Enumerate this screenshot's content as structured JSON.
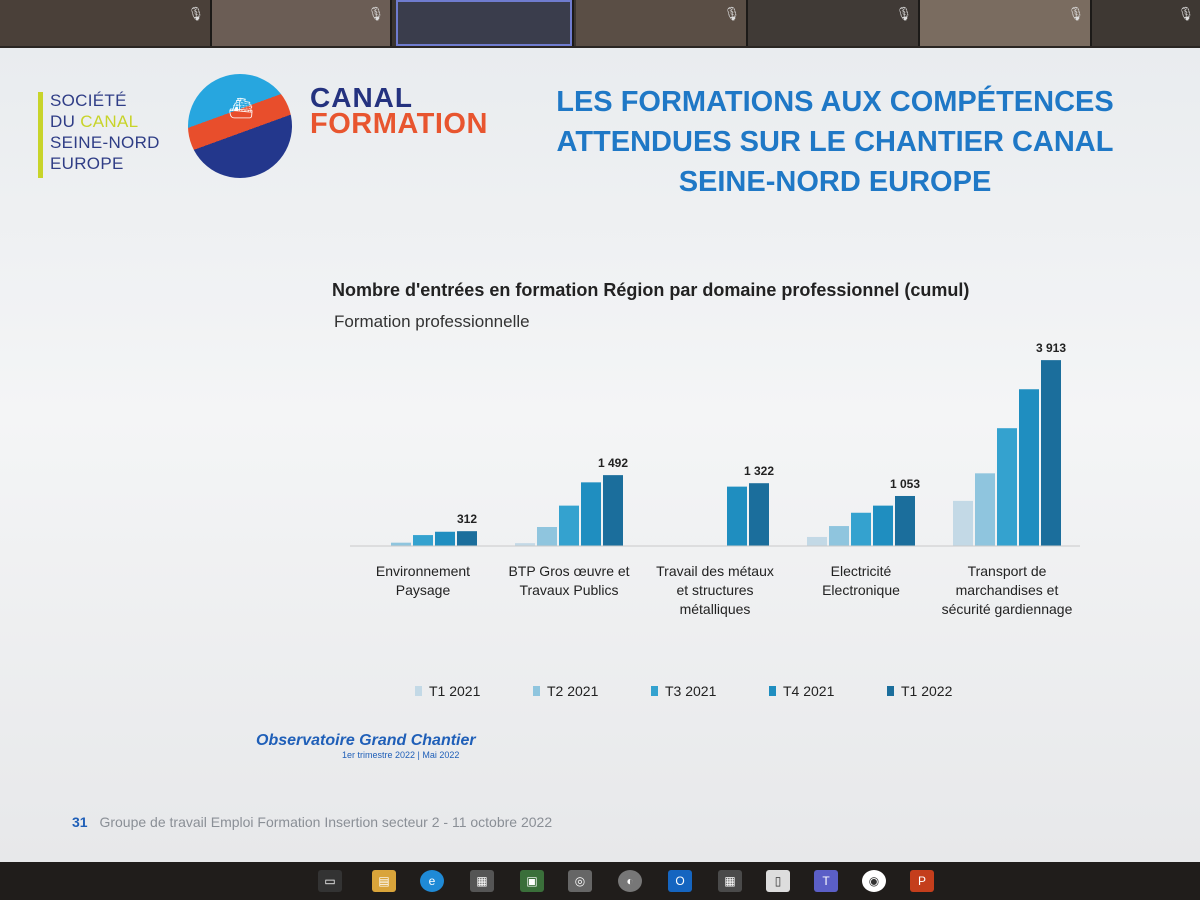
{
  "slide": {
    "logo": {
      "line1": "SOCIÉTÉ",
      "line2a": "DU ",
      "line2b": "CANAL",
      "line3": "SEINE-NORD",
      "line4": "EUROPE"
    },
    "brand": {
      "line1": "CANAL",
      "line2": "FORMATION"
    },
    "title_lines": [
      "LES FORMATIONS AUX COMPÉTENCES",
      "ATTENDUES SUR LE CHANTIER CANAL",
      "SEINE-NORD EUROPE"
    ],
    "observatory": {
      "title": "Observatoire Grand Chantier",
      "subtitle": "1er trimestre 2022 | Mai 2022"
    },
    "footer": {
      "page": "31",
      "text": "Groupe de travail Emploi Formation Insertion secteur 2 - 11 octobre 2022"
    }
  },
  "chart_data": {
    "type": "bar",
    "title": "Nombre d'entrées en formation Région par domaine professionnel (cumul)",
    "subtitle": "Formation professionnelle",
    "categories": [
      [
        "Environnement",
        "Paysage"
      ],
      [
        "BTP Gros œuvre et",
        "Travaux Publics"
      ],
      [
        "Travail des métaux",
        "et structures",
        "métalliques"
      ],
      [
        "Electricité",
        "Electronique"
      ],
      [
        "Transport de",
        "marchandises et",
        "sécurité gardiennage"
      ]
    ],
    "series": [
      {
        "name": "T1 2021",
        "color": "#c3d9e6",
        "values": [
          0,
          60,
          0,
          190,
          950
        ]
      },
      {
        "name": "T2 2021",
        "color": "#8fc5de",
        "values": [
          70,
          400,
          0,
          420,
          1530
        ]
      },
      {
        "name": "T3 2021",
        "color": "#34a2cf",
        "values": [
          230,
          850,
          0,
          700,
          2480
        ]
      },
      {
        "name": "T4 2021",
        "color": "#1f8ec0",
        "values": [
          300,
          1340,
          1250,
          850,
          3300
        ]
      },
      {
        "name": "T1 2022",
        "color": "#1b6e9c",
        "values": [
          312,
          1492,
          1322,
          1053,
          3913
        ]
      }
    ],
    "data_labels": [
      "312",
      "1 492",
      "1 322",
      "1 053",
      "3 913"
    ],
    "ylim": [
      0,
      4000
    ],
    "legend": "bottom"
  },
  "colors": {
    "title": "#1f78c6",
    "brand_blue": "#24327f",
    "brand_orange": "#e8552f",
    "accent_green": "#c8d42a"
  }
}
